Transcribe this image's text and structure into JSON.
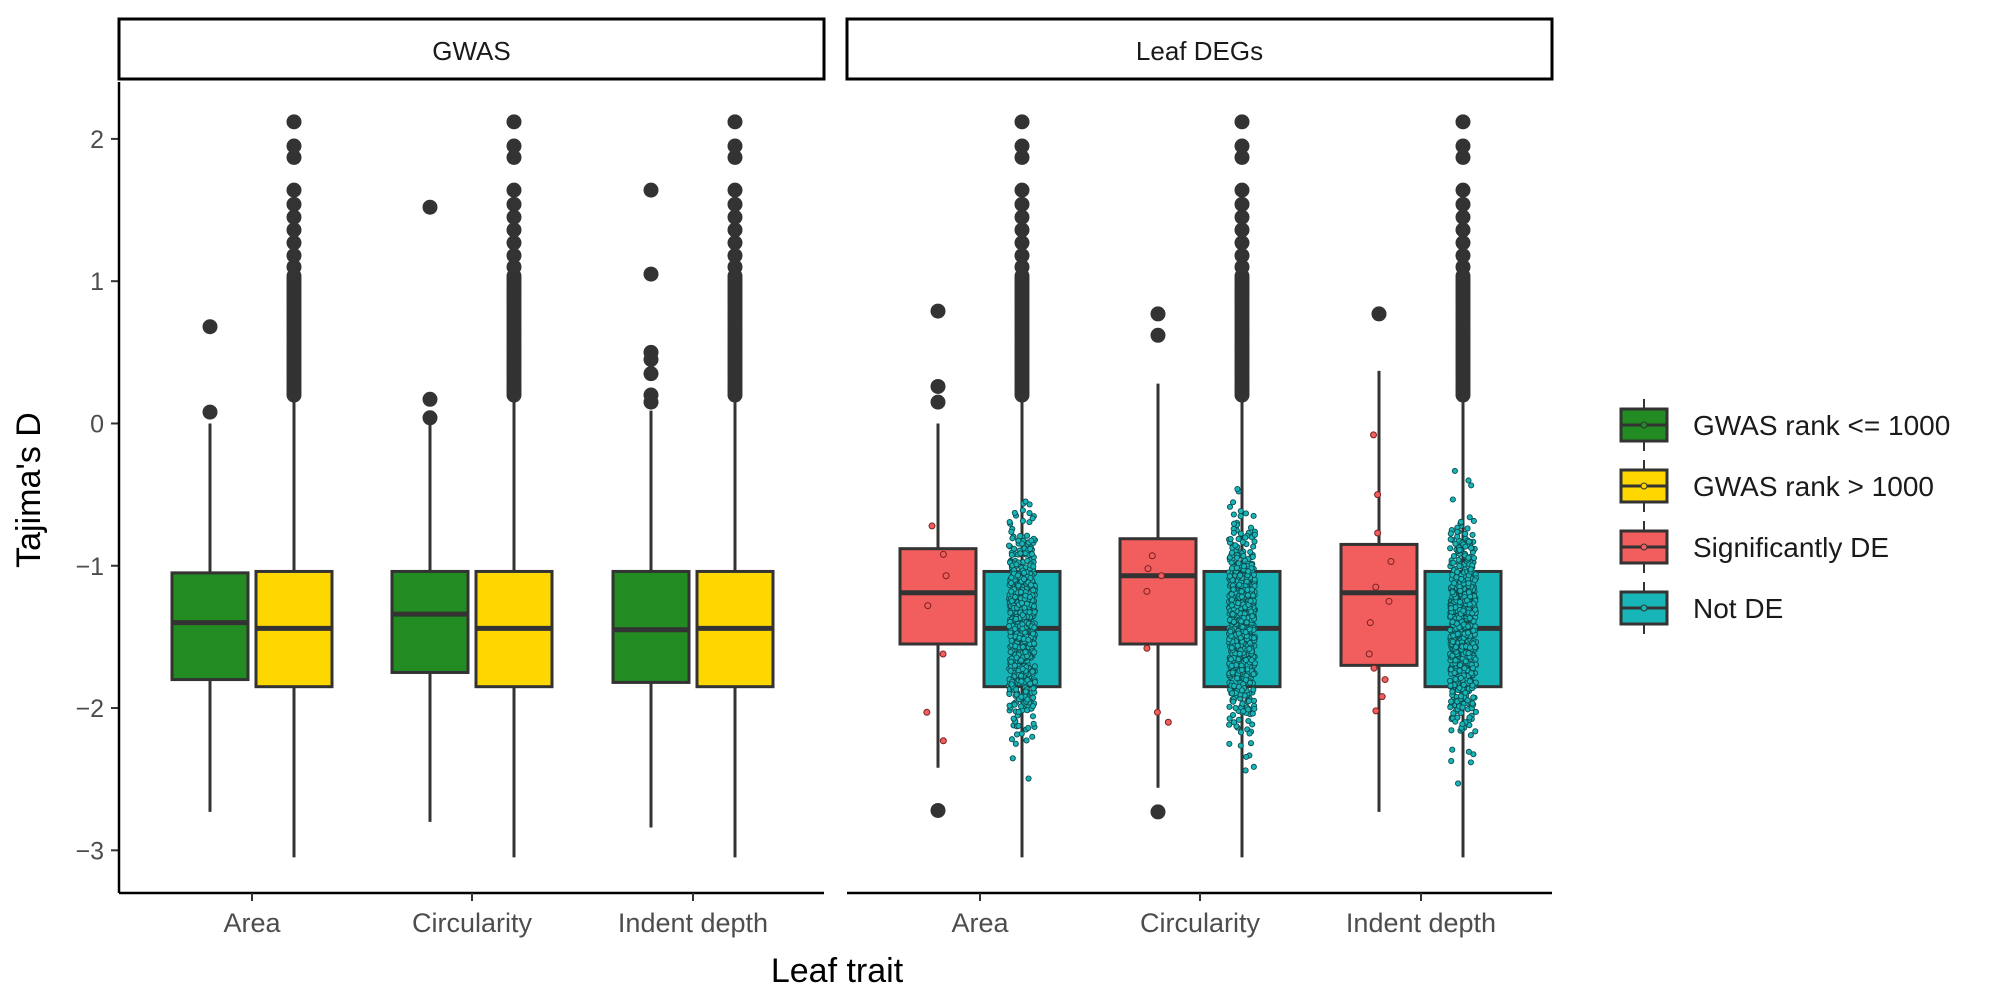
{
  "chart_data": {
    "type": "box",
    "ylabel": "Tajima's D",
    "xlabel": "Leaf trait",
    "ylim": [
      -3.3,
      2.4
    ],
    "yticks": [
      2,
      1,
      0,
      -1,
      -2,
      -3
    ],
    "ytick_labels": [
      "2",
      "1",
      "0",
      "−1",
      "−2",
      "−3"
    ],
    "categories": [
      "Area",
      "Circularity",
      "Indent depth"
    ],
    "legend": {
      "position": "right",
      "items": [
        {
          "label": "GWAS rank <= 1000",
          "color": "#228B22"
        },
        {
          "label": "GWAS rank > 1000",
          "color": "#FFD700"
        },
        {
          "label": "Significantly DE",
          "color": "#F25D5D"
        },
        {
          "label": "Not DE",
          "color": "#17B5B8"
        }
      ]
    },
    "panels": [
      {
        "title": "GWAS",
        "groups": [
          {
            "category": "Area",
            "series": "GWAS rank <= 1000",
            "color": "#228B22",
            "q1": -1.8,
            "median": -1.4,
            "q3": -1.05,
            "whisker_low": -2.73,
            "whisker_high": 0.0,
            "outliers": [
              0.68,
              0.08
            ]
          },
          {
            "category": "Area",
            "series": "GWAS rank > 1000",
            "color": "#FFD700",
            "q1": -1.85,
            "median": -1.44,
            "q3": -1.04,
            "whisker_low": -3.05,
            "whisker_high": 0.18,
            "outliers_range": [
              0.2,
              2.12
            ]
          },
          {
            "category": "Circularity",
            "series": "GWAS rank <= 1000",
            "color": "#228B22",
            "q1": -1.75,
            "median": -1.34,
            "q3": -1.04,
            "whisker_low": -2.8,
            "whisker_high": 0.02,
            "outliers": [
              1.52,
              0.17,
              0.04
            ]
          },
          {
            "category": "Circularity",
            "series": "GWAS rank > 1000",
            "color": "#FFD700",
            "q1": -1.85,
            "median": -1.44,
            "q3": -1.04,
            "whisker_low": -3.05,
            "whisker_high": 0.18,
            "outliers_range": [
              0.2,
              2.12
            ]
          },
          {
            "category": "Indent depth",
            "series": "GWAS rank <= 1000",
            "color": "#228B22",
            "q1": -1.82,
            "median": -1.45,
            "q3": -1.04,
            "whisker_low": -2.84,
            "whisker_high": 0.09,
            "outliers": [
              1.64,
              1.05,
              0.5,
              0.45,
              0.35,
              0.2,
              0.15
            ]
          },
          {
            "category": "Indent depth",
            "series": "GWAS rank > 1000",
            "color": "#FFD700",
            "q1": -1.85,
            "median": -1.44,
            "q3": -1.04,
            "whisker_low": -3.05,
            "whisker_high": 0.18,
            "outliers_range": [
              0.2,
              2.12
            ]
          }
        ]
      },
      {
        "title": "Leaf DEGs",
        "groups": [
          {
            "category": "Area",
            "series": "Significantly DE",
            "color": "#F25D5D",
            "q1": -1.55,
            "median": -1.19,
            "q3": -0.88,
            "whisker_low": -2.42,
            "whisker_high": 0.0,
            "outliers": [
              0.79,
              0.26,
              0.15,
              -2.72
            ],
            "jitter": [
              -0.72,
              -0.92,
              -1.07,
              -1.28,
              -1.62,
              -2.03,
              -2.23
            ]
          },
          {
            "category": "Area",
            "series": "Not DE",
            "color": "#17B5B8",
            "q1": -1.85,
            "median": -1.44,
            "q3": -1.04,
            "whisker_low": -3.05,
            "whisker_high": 0.18,
            "outliers_range": [
              0.2,
              2.12
            ]
          },
          {
            "category": "Circularity",
            "series": "Significantly DE",
            "color": "#F25D5D",
            "q1": -1.55,
            "median": -1.07,
            "q3": -0.81,
            "whisker_low": -2.56,
            "whisker_high": 0.28,
            "outliers": [
              0.77,
              0.62,
              -2.73
            ],
            "jitter": [
              -0.93,
              -1.02,
              -1.07,
              -1.18,
              -1.58,
              -2.03,
              -2.1
            ]
          },
          {
            "category": "Circularity",
            "series": "Not DE",
            "color": "#17B5B8",
            "q1": -1.85,
            "median": -1.44,
            "q3": -1.04,
            "whisker_low": -3.05,
            "whisker_high": 0.18,
            "outliers_range": [
              0.2,
              2.12
            ]
          },
          {
            "category": "Indent depth",
            "series": "Significantly DE",
            "color": "#F25D5D",
            "q1": -1.7,
            "median": -1.19,
            "q3": -0.85,
            "whisker_low": -2.73,
            "whisker_high": 0.37,
            "outliers": [
              0.77
            ],
            "jitter": [
              -0.08,
              -0.5,
              -0.77,
              -0.97,
              -1.15,
              -1.25,
              -1.4,
              -1.62,
              -1.72,
              -1.8,
              -1.92,
              -2.02
            ]
          },
          {
            "category": "Indent depth",
            "series": "Not DE",
            "color": "#17B5B8",
            "q1": -1.85,
            "median": -1.44,
            "q3": -1.04,
            "whisker_low": -3.05,
            "whisker_high": 0.18,
            "outliers_range": [
              0.2,
              2.12
            ]
          }
        ]
      }
    ]
  }
}
